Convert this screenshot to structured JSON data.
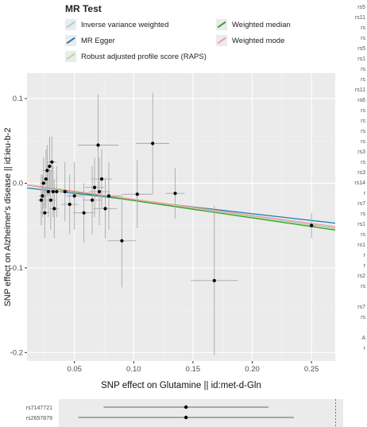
{
  "legend": {
    "title": "MR Test",
    "items": [
      {
        "label": "Inverse variance weighted",
        "color": "#a6cee3"
      },
      {
        "label": "MR Egger",
        "color": "#1f78b4"
      },
      {
        "label": "Robust adjusted profile score (RAPS)",
        "color": "#b2df8a"
      },
      {
        "label": "Weighted median",
        "color": "#33a02c"
      },
      {
        "label": "Weighted mode",
        "color": "#fb9a99"
      }
    ]
  },
  "chart_data": {
    "type": "scatter",
    "xlabel": "SNP effect on Glutamine || id:met-d-Gln",
    "ylabel": "SNP effect on Alzheimer's disease || id:ieu-b-2",
    "xlim": [
      0.01,
      0.27
    ],
    "ylim": [
      -0.21,
      0.13
    ],
    "x_ticks": [
      "0.05",
      "0.10",
      "0.15",
      "0.20",
      "0.25"
    ],
    "y_ticks": [
      "0.1",
      "0.0",
      "-0.1",
      "-0.2"
    ],
    "grid": true,
    "legend_position": "top",
    "points": [
      {
        "x": 0.022,
        "y": -0.02,
        "xerr": 0.003,
        "yerr": 0.03
      },
      {
        "x": 0.023,
        "y": -0.015,
        "xerr": 0.003,
        "yerr": 0.025
      },
      {
        "x": 0.024,
        "y": 0.0,
        "xerr": 0.003,
        "yerr": 0.03
      },
      {
        "x": 0.025,
        "y": -0.035,
        "xerr": 0.004,
        "yerr": 0.03
      },
      {
        "x": 0.026,
        "y": 0.005,
        "xerr": 0.003,
        "yerr": 0.035
      },
      {
        "x": 0.027,
        "y": 0.015,
        "xerr": 0.004,
        "yerr": 0.03
      },
      {
        "x": 0.028,
        "y": -0.01,
        "xerr": 0.004,
        "yerr": 0.03
      },
      {
        "x": 0.029,
        "y": 0.02,
        "xerr": 0.003,
        "yerr": 0.035
      },
      {
        "x": 0.03,
        "y": -0.02,
        "xerr": 0.004,
        "yerr": 0.035
      },
      {
        "x": 0.031,
        "y": 0.025,
        "xerr": 0.004,
        "yerr": 0.03
      },
      {
        "x": 0.032,
        "y": -0.01,
        "xerr": 0.004,
        "yerr": 0.03
      },
      {
        "x": 0.033,
        "y": -0.03,
        "xerr": 0.004,
        "yerr": 0.035
      },
      {
        "x": 0.035,
        "y": -0.01,
        "xerr": 0.005,
        "yerr": 0.03
      },
      {
        "x": 0.042,
        "y": -0.01,
        "xerr": 0.006,
        "yerr": 0.035
      },
      {
        "x": 0.046,
        "y": -0.025,
        "xerr": 0.007,
        "yerr": 0.035
      },
      {
        "x": 0.05,
        "y": -0.015,
        "xerr": 0.007,
        "yerr": 0.04
      },
      {
        "x": 0.058,
        "y": -0.035,
        "xerr": 0.009,
        "yerr": 0.035
      },
      {
        "x": 0.065,
        "y": -0.02,
        "xerr": 0.008,
        "yerr": 0.04
      },
      {
        "x": 0.067,
        "y": -0.005,
        "xerr": 0.008,
        "yerr": 0.035
      },
      {
        "x": 0.07,
        "y": 0.045,
        "xerr": 0.017,
        "yerr": 0.06
      },
      {
        "x": 0.071,
        "y": -0.01,
        "xerr": 0.009,
        "yerr": 0.04
      },
      {
        "x": 0.073,
        "y": 0.005,
        "xerr": 0.009,
        "yerr": 0.035
      },
      {
        "x": 0.076,
        "y": -0.03,
        "xerr": 0.01,
        "yerr": 0.035
      },
      {
        "x": 0.079,
        "y": -0.015,
        "xerr": 0.01,
        "yerr": 0.04
      },
      {
        "x": 0.09,
        "y": -0.068,
        "xerr": 0.012,
        "yerr": 0.055
      },
      {
        "x": 0.103,
        "y": -0.013,
        "xerr": 0.012,
        "yerr": 0.04
      },
      {
        "x": 0.116,
        "y": 0.047,
        "xerr": 0.014,
        "yerr": 0.06
      },
      {
        "x": 0.135,
        "y": -0.012,
        "xerr": 0.008,
        "yerr": 0.03
      },
      {
        "x": 0.168,
        "y": -0.115,
        "xerr": 0.02,
        "yerr": 0.088
      },
      {
        "x": 0.25,
        "y": -0.05,
        "xerr": 0.004,
        "yerr": 0.015
      }
    ],
    "lines": [
      {
        "method": "Inverse variance weighted",
        "intercept": 0,
        "slope": -0.195
      },
      {
        "method": "MR Egger",
        "intercept": -0.004,
        "slope": -0.16
      },
      {
        "method": "Robust adjusted profile score (RAPS)",
        "intercept": 0,
        "slope": -0.2
      },
      {
        "method": "Weighted median",
        "intercept": 0,
        "slope": -0.205
      },
      {
        "method": "Weighted mode",
        "intercept": 0,
        "slope": -0.19
      }
    ]
  },
  "side_labels": [
    "rs5",
    "rs11",
    "rs",
    "rs",
    "rs5",
    "rs1",
    "rs",
    "rs",
    "rs11",
    "rs6",
    "rs",
    "rs",
    "rs",
    "rs",
    "rs3",
    "rs",
    "rs3",
    "rs14",
    "r",
    "rs7",
    "rs",
    "rs1",
    "rs",
    "rs1",
    "r",
    "r",
    "rs2",
    "rs",
    "",
    "rs7",
    "rs",
    "",
    "A",
    "r"
  ],
  "forest": {
    "rows": [
      {
        "label": "rs7147721",
        "estimate": 0.0,
        "lo": -0.55,
        "hi": 0.55
      },
      {
        "label": "rs2657879",
        "estimate": 0.0,
        "lo": -0.72,
        "hi": 0.72
      }
    ],
    "xlim": [
      -0.85,
      1.05
    ],
    "ref_line": 1.0
  }
}
